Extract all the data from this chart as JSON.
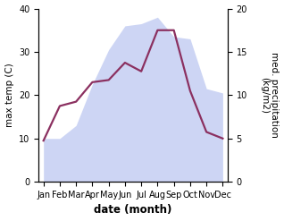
{
  "months": [
    "Jan",
    "Feb",
    "Mar",
    "Apr",
    "May",
    "Jun",
    "Jul",
    "Aug",
    "Sep",
    "Oct",
    "Nov",
    "Dec"
  ],
  "month_positions": [
    0,
    1,
    2,
    3,
    4,
    5,
    6,
    7,
    8,
    9,
    10,
    11
  ],
  "temperature": [
    9.5,
    17.5,
    18.5,
    23.0,
    23.5,
    27.5,
    25.5,
    35.0,
    35.0,
    21.0,
    11.5,
    10.0
  ],
  "precipitation": [
    10.0,
    10.0,
    13.0,
    22.5,
    30.5,
    36.0,
    36.5,
    38.0,
    33.5,
    33.0,
    21.5,
    20.5
  ],
  "temp_color": "#8B3060",
  "precip_fill_color": "#b8c4f0",
  "precip_alpha": 0.7,
  "temp_ylim": [
    0,
    40
  ],
  "temp_yticks": [
    0,
    10,
    20,
    30,
    40
  ],
  "precip_ylim": [
    0,
    25
  ],
  "precip_yticks": [
    0,
    5,
    10,
    15,
    20
  ],
  "xlabel": "date (month)",
  "ylabel_left": "max temp (C)",
  "ylabel_right": "med. precipitation\n(kg/m2)",
  "background_color": "#ffffff",
  "temp_linewidth": 1.6,
  "xlabel_fontsize": 8.5,
  "ylabel_fontsize": 7.5,
  "tick_fontsize": 7.0
}
